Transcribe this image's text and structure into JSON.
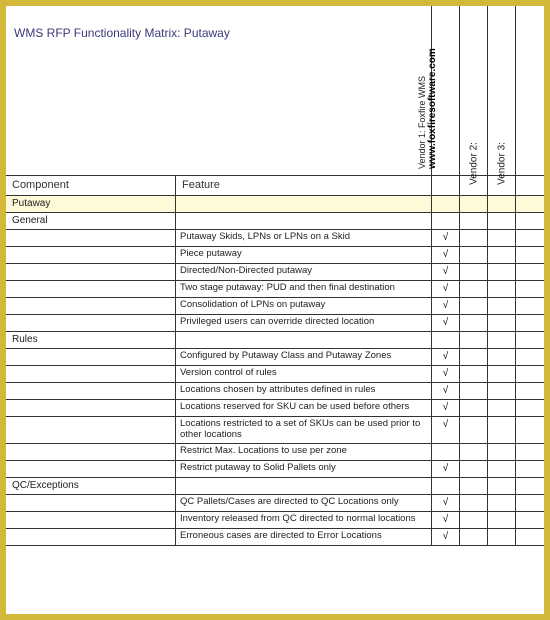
{
  "title": "WMS RFP Functionality Matrix:  Putaway",
  "vendors": {
    "v1_label": "Vendor 1: Foxfire WMS",
    "v1_url": "www.foxfiresoftware.com",
    "v2_label": "Vendor 2:",
    "v3_label": "Vendor 3:"
  },
  "columns": {
    "component": "Component",
    "feature": "Feature"
  },
  "rows": [
    {
      "component": "Putaway",
      "feature": "",
      "v1": "",
      "highlight": true
    },
    {
      "component": "General",
      "feature": "",
      "v1": ""
    },
    {
      "component": "",
      "feature": "Putaway Skids, LPNs or LPNs on a Skid",
      "v1": "√"
    },
    {
      "component": "",
      "feature": "Piece putaway",
      "v1": "√"
    },
    {
      "component": "",
      "feature": "Directed/Non-Directed putaway",
      "v1": "√"
    },
    {
      "component": "",
      "feature": "Two stage putaway: PUD and then final destination",
      "v1": "√"
    },
    {
      "component": "",
      "feature": "Consolidation of LPNs on putaway",
      "v1": "√"
    },
    {
      "component": "",
      "feature": "Privileged users can override directed location",
      "v1": "√"
    },
    {
      "component": "Rules",
      "feature": "",
      "v1": ""
    },
    {
      "component": "",
      "feature": "Configured by Putaway Class and Putaway Zones",
      "v1": "√"
    },
    {
      "component": "",
      "feature": "Version control of rules",
      "v1": "√"
    },
    {
      "component": "",
      "feature": "Locations chosen by attributes defined in rules",
      "v1": "√"
    },
    {
      "component": "",
      "feature": "Locations reserved for SKU can be used before others",
      "v1": "√"
    },
    {
      "component": "",
      "feature": "Locations restricted to a set of SKUs can be used prior to other locations",
      "v1": "√",
      "tall": true
    },
    {
      "component": "",
      "feature": "Restrict Max. Locations to use per zone",
      "v1": ""
    },
    {
      "component": "",
      "feature": "Restrict putaway to Solid Pallets only",
      "v1": "√"
    },
    {
      "component": "QC/Exceptions",
      "feature": "",
      "v1": ""
    },
    {
      "component": "",
      "feature": "QC Pallets/Cases are directed to QC Locations only",
      "v1": "√"
    },
    {
      "component": "",
      "feature": "Inventory released from QC directed to normal locations",
      "v1": "√"
    },
    {
      "component": "",
      "feature": "Erroneous cases are directed to Error Locations",
      "v1": "√"
    }
  ],
  "colors": {
    "frame": "#d4b838",
    "page_bg": "#ffffff",
    "highlight_bg": "#fef9d6",
    "border": "#333333",
    "title_color": "#3a3a7a"
  }
}
